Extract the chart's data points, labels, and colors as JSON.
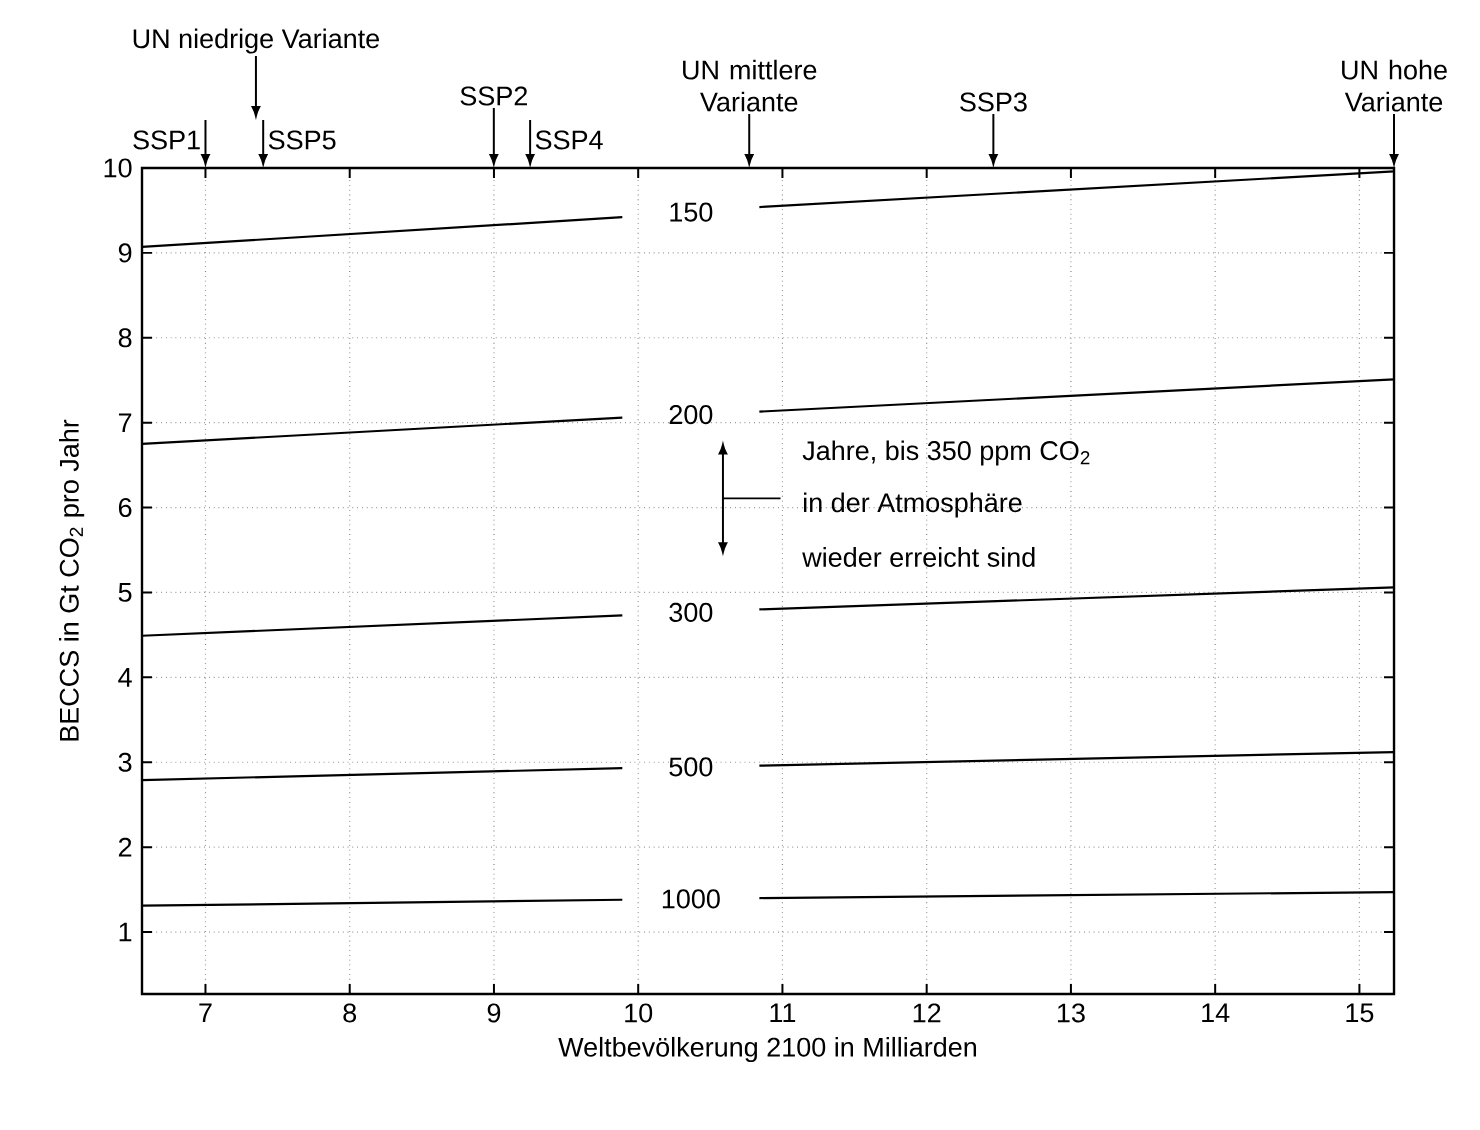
{
  "chart_data": {
    "type": "line",
    "xlabel": "Weltbevölkerung 2100 in Milliarden",
    "ylabel": "BECCS in Gt CO$_{2}$ pro Jahr",
    "series": [
      {
        "name": "150",
        "color": "#000000",
        "x": [
          6.56,
          9.89,
          10.84,
          15.24
        ],
        "values": [
          9.07,
          9.42,
          9.54,
          9.96
        ]
      },
      {
        "name": "200",
        "color": "#000000",
        "x": [
          6.56,
          9.89,
          10.84,
          15.24
        ],
        "values": [
          6.75,
          7.06,
          7.13,
          7.51
        ]
      },
      {
        "name": "300",
        "color": "#000000",
        "x": [
          6.56,
          9.89,
          10.84,
          15.24
        ],
        "values": [
          4.49,
          4.73,
          4.8,
          5.06
        ]
      },
      {
        "name": "500",
        "color": "#000000",
        "x": [
          6.56,
          9.89,
          10.84,
          15.24
        ],
        "values": [
          2.79,
          2.93,
          2.96,
          3.12
        ]
      },
      {
        "name": "1000",
        "color": "#000000",
        "x": [
          6.56,
          9.89,
          10.84,
          15.24
        ],
        "values": [
          1.31,
          1.38,
          1.4,
          1.47
        ]
      }
    ],
    "xlim": [
      6.56,
      15.24
    ],
    "ylim": [
      0.27,
      10
    ],
    "xticks": [
      7,
      8,
      9,
      10,
      11,
      12,
      13,
      14,
      15
    ],
    "yticks": [
      1,
      2,
      3,
      4,
      5,
      6,
      7,
      8,
      9,
      10
    ],
    "grid": true,
    "marker": "none",
    "line_style": "solid",
    "annotations": [
      "SSP1",
      "UN niedrige Variante",
      "SSP5",
      "SSP2",
      "SSP4",
      "UN mittlere Variante",
      "SSP3",
      "UN hohe Variante",
      "Jahre, bis 350 ppm CO$_{2}$",
      "in der Atmosphäre",
      "wieder erreicht sind"
    ]
  }
}
